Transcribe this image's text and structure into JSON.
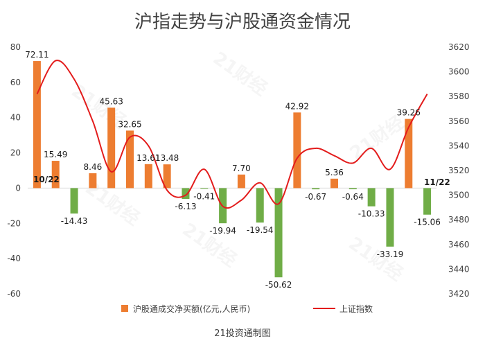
{
  "chart_data": {
    "type": "bar+line",
    "title": "沪指走势与沪股通资金情况",
    "source": "21投资通制图",
    "watermark": "21财经",
    "date_labels": {
      "start": "10/22",
      "end": "11/22"
    },
    "bar_series": {
      "name": "沪股通成交净买额(亿元,人民币)",
      "color": "#ed7d31",
      "negative_color": "#70ad47",
      "values": [
        72.11,
        15.49,
        -14.43,
        8.46,
        45.63,
        32.65,
        13.61,
        13.48,
        -6.13,
        -0.41,
        -19.94,
        7.7,
        -19.54,
        -50.62,
        42.92,
        -0.67,
        5.36,
        -0.64,
        -10.33,
        -33.19,
        39.26,
        -15.06
      ]
    },
    "line_series": {
      "name": "上证指数",
      "color": "#e31c1c",
      "values": [
        3582,
        3609,
        3594,
        3560,
        3519,
        3547,
        3540,
        3504,
        3500,
        3521,
        3491,
        3496,
        3510,
        3493,
        3530,
        3538,
        3532,
        3526,
        3538,
        3521,
        3555,
        3582
      ]
    },
    "left_axis": {
      "min": -60,
      "max": 80,
      "ticks": [
        "80",
        "60",
        "40",
        "20",
        "0",
        "-20",
        "-40",
        "-60"
      ]
    },
    "right_axis": {
      "min": 3420,
      "max": 3620,
      "ticks": [
        "3620",
        "3600",
        "3580",
        "3560",
        "3540",
        "3520",
        "3500",
        "3480",
        "3460",
        "3440",
        "3420"
      ]
    }
  }
}
